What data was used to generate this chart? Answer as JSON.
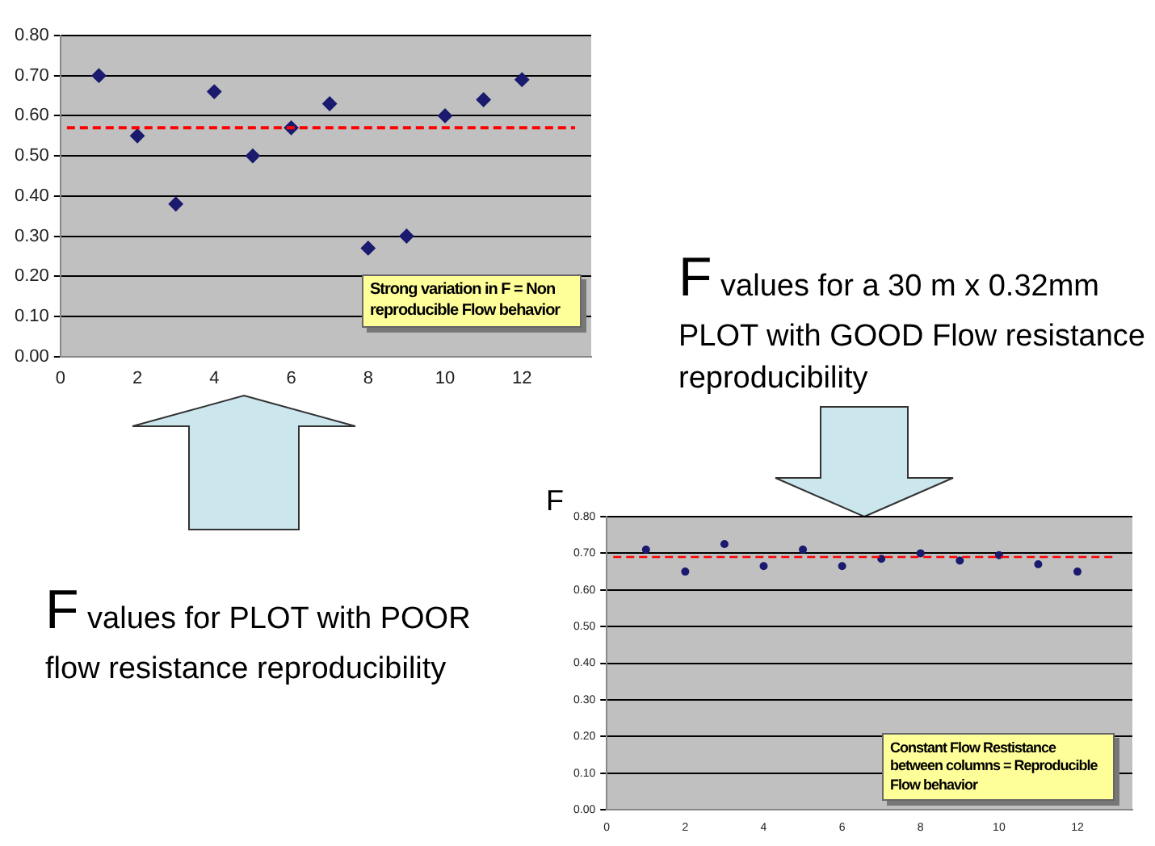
{
  "chart_data": [
    {
      "type": "scatter",
      "x": [
        1,
        2,
        3,
        4,
        5,
        6,
        7,
        8,
        9,
        10,
        11,
        12
      ],
      "series": [
        {
          "color": "#1a1a6e",
          "values": [
            0.7,
            0.55,
            0.38,
            0.66,
            0.5,
            0.57,
            0.63,
            0.27,
            0.3,
            0.6,
            0.64,
            0.69
          ]
        }
      ],
      "xlim": [
        0,
        13.8
      ],
      "xticks": [
        0,
        2,
        4,
        6,
        8,
        10,
        12
      ],
      "ylim": [
        0,
        0.8
      ],
      "yticks": [
        {
          "value": 0,
          "label": "0.00"
        },
        {
          "value": 0.1,
          "label": "0.10"
        },
        {
          "value": 0.2,
          "label": "0.20"
        },
        {
          "value": 0.3,
          "label": "0.30"
        },
        {
          "value": 0.4,
          "label": "0.40"
        },
        {
          "value": 0.5,
          "label": "0.50"
        },
        {
          "value": 0.6,
          "label": "0.60"
        },
        {
          "value": 0.7,
          "label": "0.70"
        },
        {
          "value": 0.8,
          "label": "0.80"
        }
      ],
      "ref_lines": [
        {
          "axis": "y",
          "value": 0.57,
          "color": "#ff0000",
          "line_style": "dashed"
        }
      ],
      "grid": "y",
      "marker": "diamond",
      "legend": false,
      "annotations": [
        "Strong variation in F  = Non reproducible Flow behavior",
        "F values for PLOT with POOR flow resistance reproducibility"
      ]
    },
    {
      "type": "scatter",
      "x": [
        1,
        2,
        3,
        4,
        5,
        6,
        7,
        8,
        9,
        10,
        11,
        12
      ],
      "series": [
        {
          "color": "#1a1a6e",
          "values": [
            0.71,
            0.65,
            0.725,
            0.665,
            0.71,
            0.665,
            0.685,
            0.7,
            0.68,
            0.695,
            0.67,
            0.65
          ]
        }
      ],
      "xlim": [
        0,
        13.4
      ],
      "xticks": [
        0,
        2,
        4,
        6,
        8,
        10,
        12
      ],
      "ylim": [
        0,
        0.8
      ],
      "yticks": [
        {
          "value": 0,
          "label": "0.00"
        },
        {
          "value": 0.1,
          "label": "0.10"
        },
        {
          "value": 0.2,
          "label": "0.20"
        },
        {
          "value": 0.3,
          "label": "0.30"
        },
        {
          "value": 0.4,
          "label": "0.40"
        },
        {
          "value": 0.5,
          "label": "0.50"
        },
        {
          "value": 0.6,
          "label": "0.60"
        },
        {
          "value": 0.7,
          "label": "0.70"
        },
        {
          "value": 0.8,
          "label": "0.80"
        }
      ],
      "ylabel": "F",
      "ref_lines": [
        {
          "axis": "y",
          "value": 0.69,
          "color": "#ff0000",
          "line_style": "dashed"
        }
      ],
      "grid": "y",
      "marker": "circle",
      "legend": false,
      "annotations": [
        "Constant Flow Restistance between columns  = Reproducible Flow behavior",
        "F values for a 30 m x 0.32mm PLOT with GOOD Flow resistance reproducibility"
      ]
    }
  ]
}
